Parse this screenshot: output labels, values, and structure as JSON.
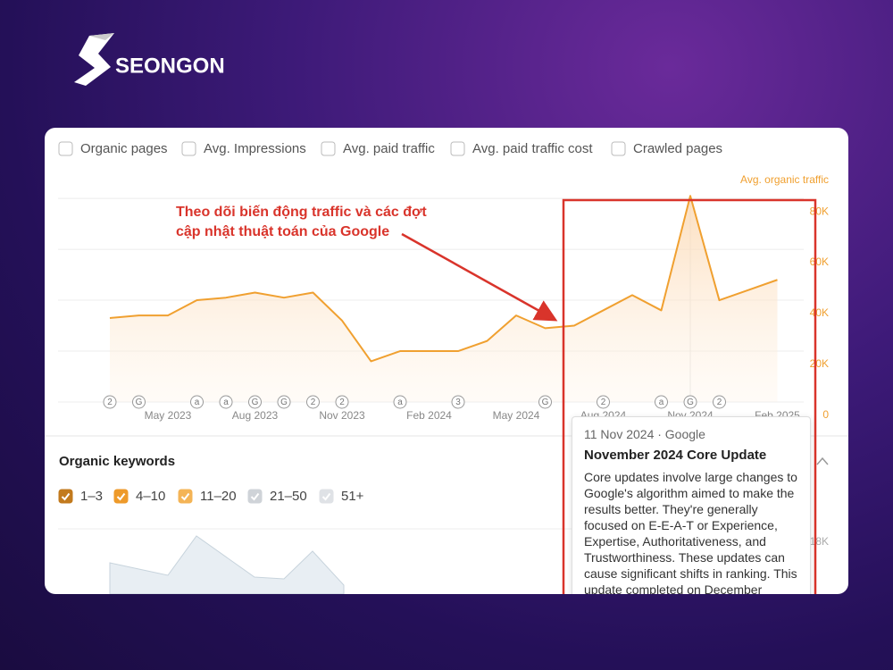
{
  "header": {
    "brand": "SEONGON"
  },
  "metric_toggles": [
    "Organic pages",
    "Avg. Impressions",
    "Avg. paid traffic",
    "Avg. paid traffic cost",
    "Crawled pages"
  ],
  "chart_data": {
    "type": "line",
    "y_label": "Avg. organic traffic",
    "annotation": [
      "Theo dõi biến động traffic và các đợt",
      "cập nhật thuật toán của Google"
    ],
    "categories": [
      null,
      null,
      "May 2023",
      null,
      null,
      "Aug 2023",
      null,
      null,
      "Nov 2023",
      null,
      null,
      "Feb 2024",
      null,
      null,
      "May 2024",
      null,
      null,
      "Aug 2024",
      null,
      null,
      "Nov 2024",
      null,
      null,
      "Feb 2025"
    ],
    "values": [
      33000,
      34000,
      34000,
      40000,
      41000,
      43000,
      41000,
      43000,
      32000,
      16000,
      20000,
      20000,
      20000,
      24000,
      34000,
      29000,
      30000,
      36000,
      42000,
      36000,
      81000,
      40000,
      44000,
      48000
    ],
    "update_markers": [
      "2",
      "G",
      null,
      "a",
      "a",
      "G",
      "G",
      "2",
      "2",
      null,
      "a",
      null,
      "3",
      null,
      null,
      "G",
      null,
      "2",
      null,
      "a",
      "G",
      "2",
      null,
      null
    ],
    "color": "#f0a030",
    "ylim": [
      0,
      86000
    ],
    "yticks": [
      0,
      {
        "value": 20000,
        "label": "20K"
      },
      {
        "value": 40000,
        "label": "40K"
      },
      {
        "value": 60000,
        "label": "60K"
      },
      {
        "value": 80000,
        "label": "80K"
      }
    ],
    "grid": true
  },
  "tooltip": {
    "date": "11 Nov 2024 · Google",
    "title": "November 2024 Core Update",
    "body": "Core updates involve large changes to Google's algorithm aimed to make the results better. They're generally focused on E-E-A-T or Experience, Expertise, Authoritativeness, and Trustworthiness. These updates can cause significant shifts in ranking. This update completed on December"
  },
  "keywords_panel": {
    "title": "Organic keywords",
    "filters": [
      {
        "label": "1–3",
        "color": "#c27a1d"
      },
      {
        "label": "4–10",
        "color": "#ee9a2a"
      },
      {
        "label": "11–20",
        "color": "#f4b456"
      },
      {
        "label": "21–50",
        "color": "#cfd3d8"
      },
      {
        "label": "51+",
        "color": "#dfe2e6"
      }
    ],
    "axis_label": "18K"
  }
}
